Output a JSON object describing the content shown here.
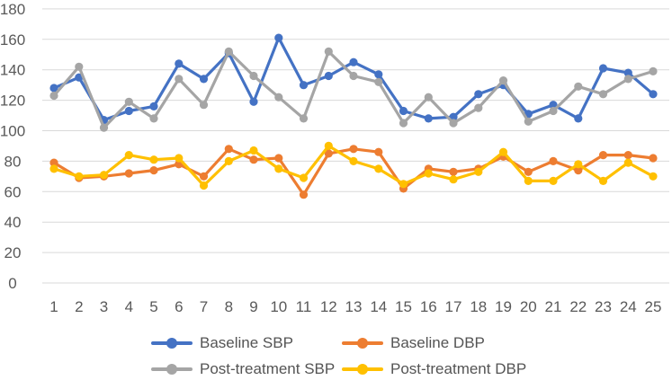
{
  "chart_data": {
    "type": "line",
    "title": "",
    "x": [
      "1",
      "2",
      "3",
      "4",
      "5",
      "6",
      "7",
      "8",
      "9",
      "10",
      "11",
      "12",
      "13",
      "14",
      "15",
      "16",
      "17",
      "18",
      "19",
      "20",
      "21",
      "22",
      "23",
      "24",
      "25"
    ],
    "ylim": [
      0,
      180
    ],
    "yticks": [
      0,
      20,
      40,
      60,
      80,
      100,
      120,
      140,
      160,
      180
    ],
    "grid": true,
    "legend_position": "bottom",
    "gridline_color": "#d9d9d9",
    "tick_color": "#595959",
    "series": [
      {
        "name": "Baseline SBP",
        "color": "#4472C4",
        "values": [
          128,
          135,
          107,
          113,
          116,
          144,
          134,
          151,
          119,
          161,
          130,
          136,
          145,
          137,
          113,
          108,
          109,
          124,
          130,
          111,
          117,
          108,
          141,
          138,
          124
        ]
      },
      {
        "name": "Baseline DBP",
        "color": "#ED7D31",
        "values": [
          79,
          69,
          70,
          72,
          74,
          78,
          70,
          88,
          81,
          82,
          58,
          85,
          88,
          86,
          62,
          75,
          73,
          75,
          83,
          73,
          80,
          74,
          84,
          84,
          82
        ]
      },
      {
        "name": "Post-treatment SBP",
        "color": "#A5A5A5",
        "values": [
          123,
          142,
          102,
          119,
          108,
          134,
          117,
          152,
          136,
          122,
          108,
          152,
          136,
          132,
          105,
          122,
          105,
          115,
          133,
          106,
          113,
          129,
          124,
          134,
          139
        ]
      },
      {
        "name": "Post-treatment DBP",
        "color": "#FFC000",
        "values": [
          75,
          70,
          71,
          84,
          81,
          82,
          64,
          80,
          87,
          75,
          69,
          90,
          80,
          75,
          65,
          72,
          68,
          73,
          86,
          67,
          67,
          78,
          67,
          79,
          70
        ]
      }
    ]
  }
}
